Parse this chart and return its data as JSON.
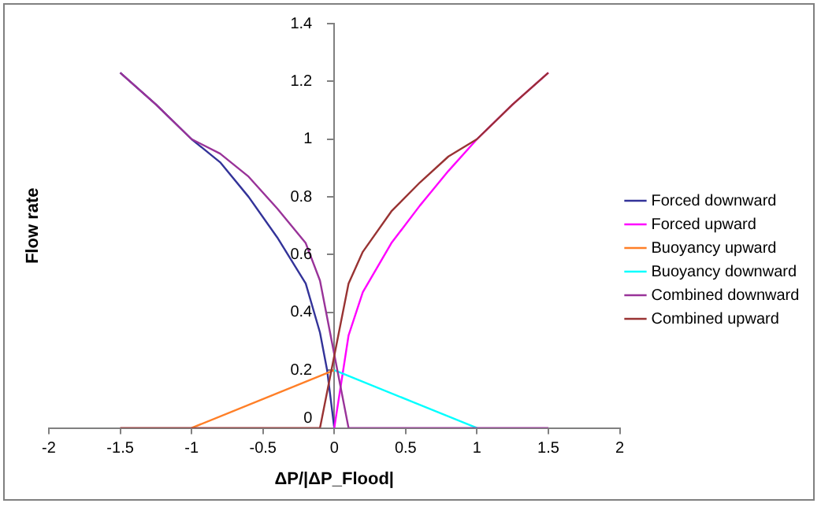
{
  "chart_data": {
    "type": "line",
    "xlabel": "ΔP/|ΔP_Flood|",
    "ylabel": "Flow rate",
    "xlim": [
      -2,
      2
    ],
    "ylim": [
      0,
      1.4
    ],
    "xticks": [
      -2,
      -1.5,
      -1,
      -0.5,
      0,
      0.5,
      1,
      1.5,
      2
    ],
    "yticks": [
      0,
      0.2,
      0.4,
      0.6,
      0.8,
      1,
      1.2,
      1.4
    ],
    "grid": false,
    "legend": "right",
    "marker": "none",
    "line_style": "solid",
    "series": [
      {
        "name": "Forced downward",
        "color": "#333399",
        "x": [
          -1.5,
          -1.25,
          -1,
          -0.8,
          -0.6,
          -0.4,
          -0.2,
          -0.1,
          -0.05,
          0
        ],
        "values": [
          1.23,
          1.12,
          1.0,
          0.92,
          0.8,
          0.66,
          0.5,
          0.33,
          0.2,
          0
        ]
      },
      {
        "name": "Forced upward",
        "color": "#ff00ff",
        "x": [
          0,
          0.1,
          0.2,
          0.4,
          0.6,
          0.8,
          1,
          1.25,
          1.5
        ],
        "values": [
          0,
          0.32,
          0.47,
          0.64,
          0.77,
          0.89,
          1.0,
          1.12,
          1.23
        ]
      },
      {
        "name": "Buoyancy upward",
        "color": "#ff7f27",
        "x": [
          -1,
          0
        ],
        "values": [
          0,
          0.2
        ]
      },
      {
        "name": "Buoyancy downward",
        "color": "#00ffff",
        "x": [
          0,
          1
        ],
        "values": [
          0.2,
          0
        ]
      },
      {
        "name": "Combined downward",
        "color": "#993399",
        "x": [
          -1.5,
          -1.25,
          -1,
          -0.8,
          -0.6,
          -0.4,
          -0.2,
          -0.1,
          0.1,
          1.5
        ],
        "values": [
          1.23,
          1.12,
          1.0,
          0.95,
          0.87,
          0.76,
          0.64,
          0.51,
          0,
          0
        ]
      },
      {
        "name": "Combined upward",
        "color": "#993333",
        "x": [
          -1.5,
          -0.1,
          0.1,
          0.2,
          0.4,
          0.6,
          0.8,
          1,
          1.25,
          1.5
        ],
        "values": [
          0,
          0,
          0.5,
          0.61,
          0.75,
          0.85,
          0.94,
          1.0,
          1.12,
          1.23
        ]
      }
    ]
  }
}
